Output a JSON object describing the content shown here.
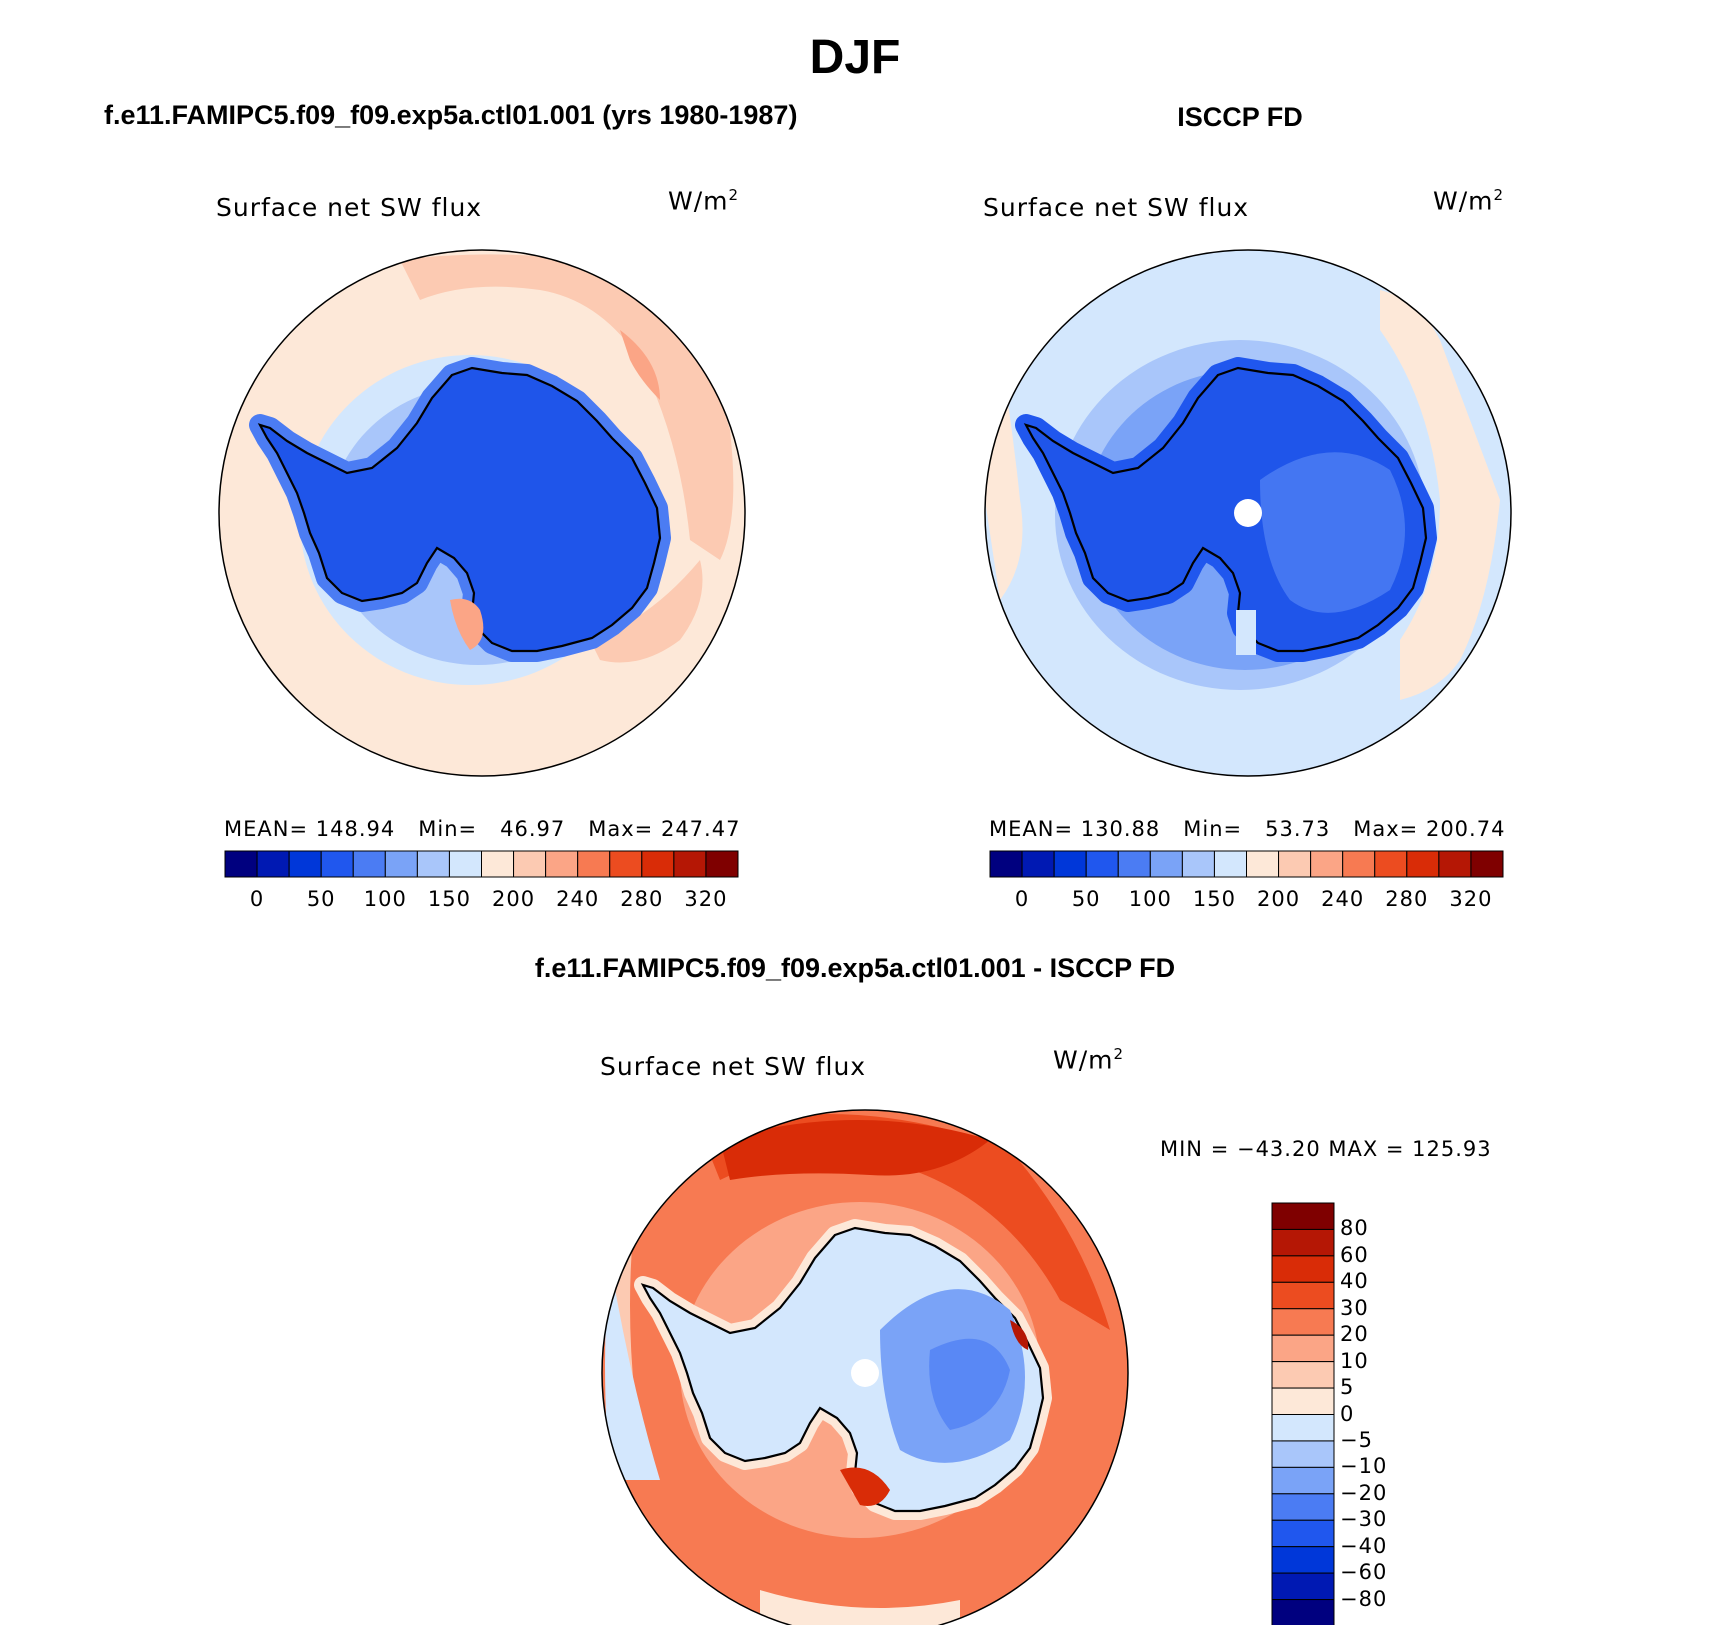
{
  "figure": {
    "title": "DJF"
  },
  "panels": [
    {
      "title": "f.e11.FAMIPC5.f09_f09.exp5a.ctl01.001 (yrs 1980-1987)",
      "variable": "Surface net SW flux",
      "unit_base": "W/m",
      "unit_exp": "2",
      "stats": "MEAN= 148.94   Min=   46.97   Max= 247.47"
    },
    {
      "title": "ISCCP FD",
      "variable": "Surface net SW flux",
      "unit_base": "W/m",
      "unit_exp": "2",
      "stats": "MEAN= 130.88   Min=   53.73   Max= 200.74"
    },
    {
      "title": "f.e11.FAMIPC5.f09_f09.exp5a.ctl01.001 - ISCCP FD",
      "variable": "Surface net SW flux",
      "unit_base": "W/m",
      "unit_exp": "2",
      "stats": "MIN = −43.20 MAX = 125.93"
    }
  ],
  "colors": {
    "scale": [
      "#00007f",
      "#0019b3",
      "#0037d9",
      "#2057ee",
      "#4b7cf3",
      "#7aa3f7",
      "#a9c6fa",
      "#d3e7fd",
      "#fde8d8",
      "#fccab2",
      "#fba586",
      "#f77a52",
      "#ec4c20",
      "#d92c07",
      "#b51705",
      "#7f0000"
    ],
    "land_blue": "#1f55ea",
    "ocean_peach": "#fde8d8",
    "ocean_light_blue": "#d3e7fd",
    "diff_red": "#ec4c20",
    "diff_dark_red": "#d92c07"
  },
  "chart_data": [
    {
      "type": "heatmap",
      "title": "Surface net SW flux",
      "units": "W/m2",
      "projection": "south polar stereographic",
      "mean": 148.94,
      "min": 46.97,
      "max": 247.47,
      "colorbar_ticks": [
        "0",
        "50",
        "100",
        "150",
        "200",
        "240",
        "280",
        "320"
      ],
      "colorbar_levels": [
        0,
        25,
        50,
        75,
        100,
        125,
        150,
        175,
        200,
        220,
        240,
        260,
        280,
        300,
        320
      ]
    },
    {
      "type": "heatmap",
      "title": "Surface net SW flux",
      "units": "W/m2",
      "projection": "south polar stereographic",
      "mean": 130.88,
      "min": 53.73,
      "max": 200.74,
      "colorbar_ticks": [
        "0",
        "50",
        "100",
        "150",
        "200",
        "240",
        "280",
        "320"
      ],
      "colorbar_levels": [
        0,
        25,
        50,
        75,
        100,
        125,
        150,
        175,
        200,
        220,
        240,
        260,
        280,
        300,
        320
      ]
    },
    {
      "type": "heatmap",
      "title": "Surface net SW flux",
      "units": "W/m2",
      "projection": "south polar stereographic",
      "min": -43.2,
      "max": 125.93,
      "colorbar_ticks": [
        "80",
        "60",
        "40",
        "30",
        "20",
        "10",
        "5",
        "0",
        "−5",
        "−10",
        "−20",
        "−30",
        "−40",
        "−60",
        "−80"
      ]
    }
  ]
}
